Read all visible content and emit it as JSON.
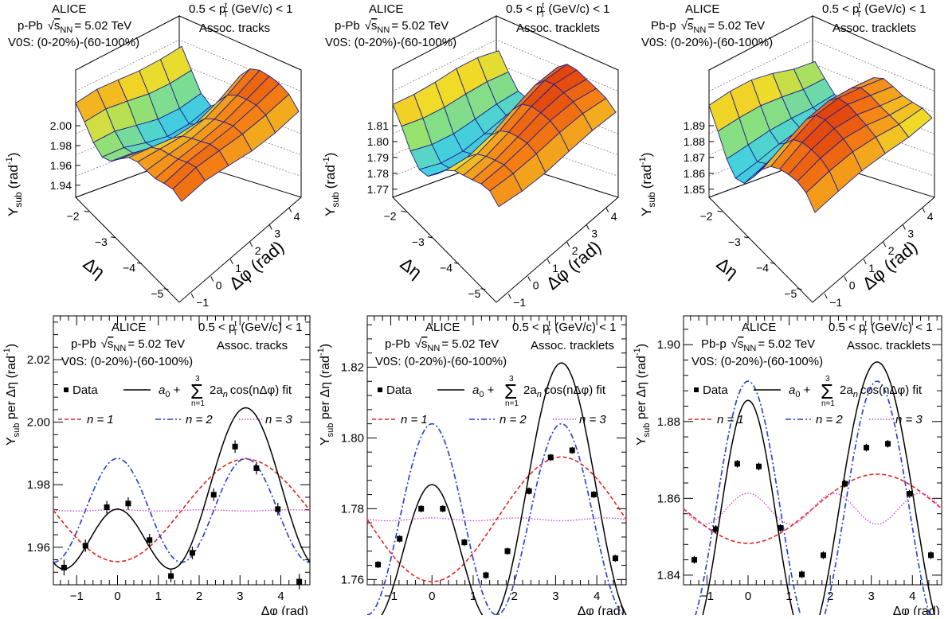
{
  "surfaces": [
    {
      "collab": "ALICE",
      "system_prefix": "p-Pb",
      "energy": "= 5.02 TeV",
      "v0s": "V0S: (0-20%)-(60-100%)",
      "pt_range": "0.5 < p",
      "pt_tail": " (GeV/c) < 1",
      "assoc": "Assoc. tracks",
      "zaxis_label": "Y",
      "zaxis_sub": "sub",
      "zaxis_unit": "(rad",
      "zaxis_unit_exp": "-1",
      "zaxis_unit_close": ")",
      "zticks": [
        "2.00",
        "1.98",
        "1.96",
        "1.94"
      ],
      "eta_label": "Δη",
      "eta_ticks": [
        "−2",
        "−3",
        "−4",
        "−5"
      ],
      "phi_label": "Δφ (rad)",
      "phi_ticks": [
        "−1",
        "0",
        "1",
        "2",
        "3",
        "4"
      ]
    },
    {
      "collab": "ALICE",
      "system_prefix": "p-Pb",
      "energy": "= 5.02 TeV",
      "v0s": "V0S: (0-20%)-(60-100%)",
      "pt_range": "0.5 < p",
      "pt_tail": " (GeV/c) < 1",
      "assoc": "Assoc. tracklets",
      "zaxis_label": "Y",
      "zaxis_sub": "sub",
      "zaxis_unit": "(rad",
      "zaxis_unit_exp": "-1",
      "zaxis_unit_close": ")",
      "zticks": [
        "1.81",
        "1.80",
        "1.79",
        "1.78",
        "1.77"
      ],
      "eta_label": "Δη",
      "eta_ticks": [
        "−2",
        "−3",
        "−4",
        "−5"
      ],
      "phi_label": "Δφ (rad)",
      "phi_ticks": [
        "−1",
        "0",
        "1",
        "2",
        "3",
        "4"
      ]
    },
    {
      "collab": "ALICE",
      "system_prefix": "Pb-p",
      "energy": "= 5.02 TeV",
      "v0s": "V0S: (0-20%)-(60-100%)",
      "pt_range": "0.5 < p",
      "pt_tail": " (GeV/c) < 1",
      "assoc": "Assoc. tracklets",
      "zaxis_label": "Y",
      "zaxis_sub": "sub",
      "zaxis_unit": "(rad",
      "zaxis_unit_exp": "-1",
      "zaxis_unit_close": ")",
      "zticks": [
        "1.89",
        "1.88",
        "1.87",
        "1.86",
        "1.85"
      ],
      "eta_label": "Δη",
      "eta_ticks": [
        "−2",
        "−3",
        "−4",
        "−5"
      ],
      "phi_label": "Δφ (rad)",
      "phi_ticks": [
        "−1",
        "0",
        "1",
        "2",
        "3",
        "4"
      ]
    }
  ],
  "chart_data": [
    {
      "type": "scatter",
      "collab": "ALICE",
      "system_prefix": "p-Pb",
      "energy": "= 5.02 TeV",
      "v0s": "V0S: (0-20%)-(60-100%)",
      "pt_range": "0.5 < p",
      "pt_tail": " (GeV/c) < 1",
      "assoc": "Assoc. tracks",
      "xlabel": "Δφ (rad)",
      "ylabel": "Y",
      "ylabel_sub": "sub",
      "ylabel_tail": " per Δη (rad",
      "ylabel_exp": "-1",
      "ylabel_close": ")",
      "xlim": [
        -1.5708,
        4.7124
      ],
      "ylim": [
        1.948,
        2.034
      ],
      "xticks": [
        -1,
        0,
        1,
        2,
        3,
        4
      ],
      "yticks": [
        1.96,
        1.98,
        2.0,
        2.02
      ],
      "ytick_labels": [
        "1.96",
        "1.98",
        "2.00",
        "2.02"
      ],
      "legend": {
        "data": "Data",
        "fit_a0": "a",
        "fit_tail": "2a",
        "fit_cos": "cos(nΔφ) fit",
        "n1": "n = 1",
        "n2": "n = 2",
        "n3": "n = 3",
        "sum_top": "3",
        "sum_bottom": "n=1"
      },
      "fit": {
        "a0": 1.9718,
        "a1": -0.0082,
        "a2": 0.0083,
        "a3": 0.0001
      },
      "points": [
        {
          "x": -1.309,
          "y": 1.9535,
          "err": 0.0025
        },
        {
          "x": -0.785,
          "y": 1.9605,
          "err": 0.002
        },
        {
          "x": -0.262,
          "y": 1.9728,
          "err": 0.002
        },
        {
          "x": 0.262,
          "y": 1.974,
          "err": 0.002
        },
        {
          "x": 0.785,
          "y": 1.9623,
          "err": 0.002
        },
        {
          "x": 1.309,
          "y": 1.9508,
          "err": 0.002
        },
        {
          "x": 1.833,
          "y": 1.9582,
          "err": 0.002
        },
        {
          "x": 2.356,
          "y": 1.9768,
          "err": 0.002
        },
        {
          "x": 2.88,
          "y": 1.9922,
          "err": 0.002
        },
        {
          "x": 3.403,
          "y": 1.9853,
          "err": 0.002
        },
        {
          "x": 3.927,
          "y": 1.9722,
          "err": 0.002
        },
        {
          "x": 4.451,
          "y": 1.949,
          "err": 0.0025
        }
      ]
    },
    {
      "type": "scatter",
      "collab": "ALICE",
      "system_prefix": "p-Pb",
      "energy": "= 5.02 TeV",
      "v0s": "V0S: (0-20%)-(60-100%)",
      "pt_range": "0.5 < p",
      "pt_tail": " (GeV/c) < 1",
      "assoc": "Assoc. tracklets",
      "xlabel": "Δφ (rad)",
      "ylabel": "Y",
      "ylabel_sub": "sub",
      "ylabel_tail": " per Δη (rad",
      "ylabel_exp": "-1",
      "ylabel_close": ")",
      "xlim": [
        -1.5708,
        4.7124
      ],
      "ylim": [
        1.7585,
        1.8345
      ],
      "xticks": [
        -1,
        0,
        1,
        2,
        3,
        4
      ],
      "yticks": [
        1.76,
        1.78,
        1.8,
        1.82
      ],
      "ytick_labels": [
        "1.76",
        "1.78",
        "1.80",
        "1.82"
      ],
      "legend": {
        "data": "Data",
        "fit_a0": "a",
        "fit_tail": "2a",
        "fit_cos": "cos(nΔφ) fit",
        "n1": "n = 1",
        "n2": "n = 2",
        "n3": "n = 3",
        "sum_top": "3",
        "sum_bottom": "n=1"
      },
      "fit": {
        "a0": 1.777,
        "a1": -0.0088,
        "a2": 0.0135,
        "a3": 0.0002
      },
      "points": [
        {
          "x": -1.309,
          "y": 1.7642,
          "err": 0.001
        },
        {
          "x": -0.785,
          "y": 1.7715,
          "err": 0.001
        },
        {
          "x": -0.262,
          "y": 1.78,
          "err": 0.001
        },
        {
          "x": 0.262,
          "y": 1.78,
          "err": 0.001
        },
        {
          "x": 0.785,
          "y": 1.7705,
          "err": 0.001
        },
        {
          "x": 1.309,
          "y": 1.7612,
          "err": 0.001
        },
        {
          "x": 1.833,
          "y": 1.768,
          "err": 0.001
        },
        {
          "x": 2.356,
          "y": 1.785,
          "err": 0.001
        },
        {
          "x": 2.88,
          "y": 1.7945,
          "err": 0.001
        },
        {
          "x": 3.403,
          "y": 1.7965,
          "err": 0.001
        },
        {
          "x": 3.927,
          "y": 1.784,
          "err": 0.001
        },
        {
          "x": 4.451,
          "y": 1.766,
          "err": 0.001
        }
      ]
    },
    {
      "type": "scatter",
      "collab": "ALICE",
      "system_prefix": "Pb-p",
      "energy": "= 5.02 TeV",
      "v0s": "V0S: (0-20%)-(60-100%)",
      "pt_range": "0.5 < p",
      "pt_tail": " (GeV/c) < 1",
      "assoc": "Assoc. tracklets",
      "xlabel": "Δφ (rad)",
      "ylabel": "Y",
      "ylabel_sub": "sub",
      "ylabel_tail": " per Δη (rad",
      "ylabel_exp": "-1",
      "ylabel_close": ")",
      "xlim": [
        -1.5708,
        4.7124
      ],
      "ylim": [
        1.8375,
        1.9075
      ],
      "xticks": [
        -1,
        0,
        1,
        2,
        3,
        4
      ],
      "yticks": [
        1.84,
        1.86,
        1.88,
        1.9
      ],
      "ytick_labels": [
        "1.84",
        "1.86",
        "1.88",
        "1.90"
      ],
      "legend": {
        "data": "Data",
        "fit_a0": "a",
        "fit_tail": "2a",
        "fit_cos": "cos(nΔφ) fit",
        "n1": "n = 1",
        "n2": "n = 2",
        "n3": "n = 3",
        "sum_top": "3",
        "sum_bottom": "n=1"
      },
      "fit": {
        "a0": 1.8573,
        "a1": -0.0045,
        "a2": 0.0166,
        "a3": 0.002
      },
      "points": [
        {
          "x": -1.309,
          "y": 1.844,
          "err": 0.001
        },
        {
          "x": -0.785,
          "y": 1.852,
          "err": 0.001
        },
        {
          "x": -0.262,
          "y": 1.869,
          "err": 0.001
        },
        {
          "x": 0.262,
          "y": 1.8683,
          "err": 0.001
        },
        {
          "x": 0.785,
          "y": 1.8523,
          "err": 0.001
        },
        {
          "x": 1.309,
          "y": 1.8402,
          "err": 0.001
        },
        {
          "x": 1.833,
          "y": 1.8452,
          "err": 0.001
        },
        {
          "x": 2.356,
          "y": 1.8638,
          "err": 0.001
        },
        {
          "x": 2.88,
          "y": 1.8732,
          "err": 0.001
        },
        {
          "x": 3.403,
          "y": 1.8742,
          "err": 0.001
        },
        {
          "x": 3.927,
          "y": 1.8612,
          "err": 0.001
        },
        {
          "x": 4.451,
          "y": 1.8452,
          "err": 0.001
        }
      ]
    }
  ],
  "colors": {
    "fit": "#000000",
    "n1": "#e8231c",
    "n2": "#1f3fd6",
    "n3": "#d24ad2",
    "surface_mesh": "#1f1f8f"
  }
}
